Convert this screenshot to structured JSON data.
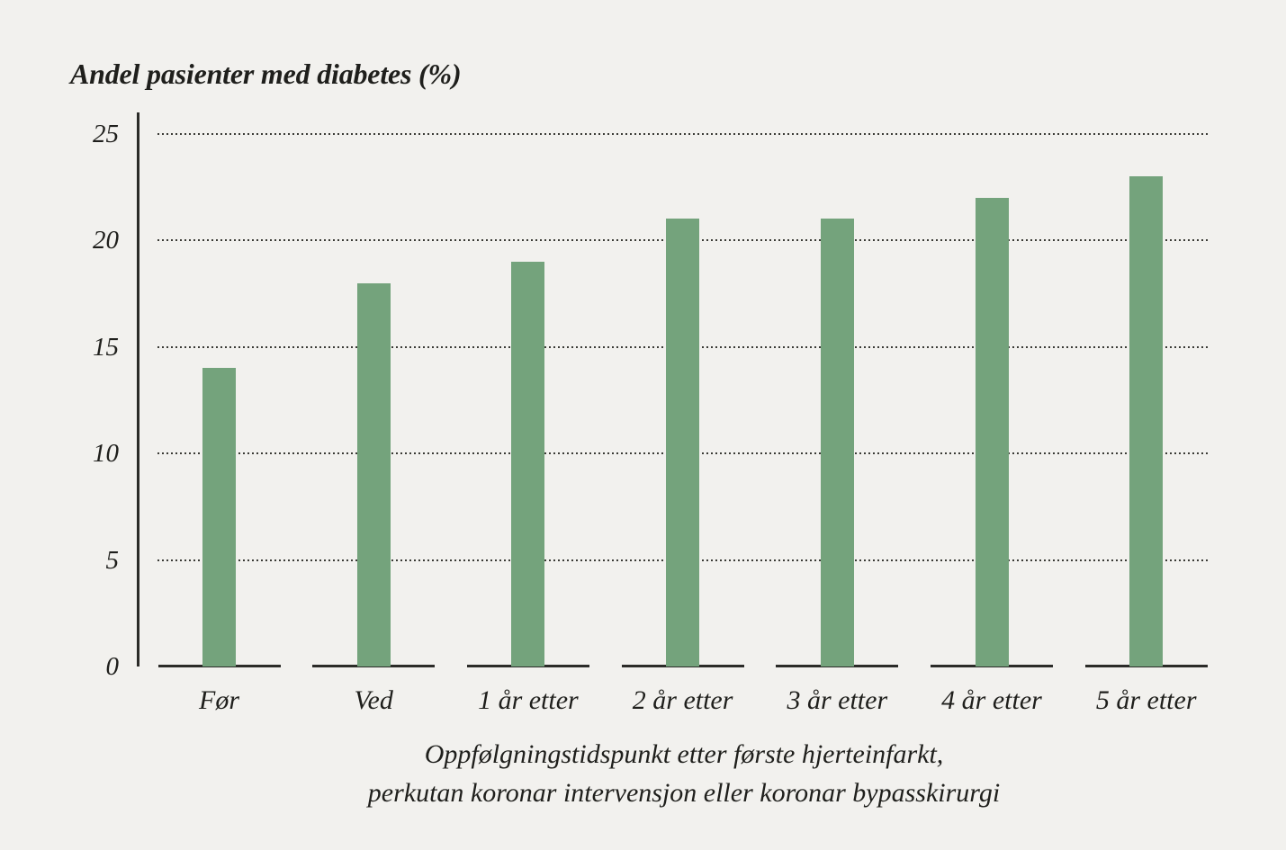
{
  "chart_data": {
    "type": "bar",
    "title": "Andel pasienter med diabetes (%)",
    "categories": [
      "Før",
      "Ved",
      "1 år etter",
      "2 år etter",
      "3 år etter",
      "4 år etter",
      "5 år etter"
    ],
    "values": [
      14,
      18,
      19,
      21,
      21,
      22,
      23
    ],
    "xlabel_lines": [
      "Oppfølgningstidspunkt etter første hjerteinfarkt,",
      "perkutan koronar intervensjon eller koronar bypasskirurgi"
    ],
    "ylabel": "Andel pasienter med diabetes (%)",
    "xlabel": "Oppfølgningstidspunkt etter første hjerteinfarkt, perkutan koronar intervensjon eller koronar bypasskirurgi",
    "yticks": [
      0,
      5,
      10,
      15,
      20,
      25
    ],
    "ylim": [
      0,
      26
    ],
    "grid": "horizontal-dotted",
    "legend": "none",
    "colors": {
      "bar": "#74a37c",
      "background": "#f2f1ee",
      "text": "#1f1f1c",
      "axis": "#2b2b28",
      "grid": "#3a3a35"
    }
  }
}
